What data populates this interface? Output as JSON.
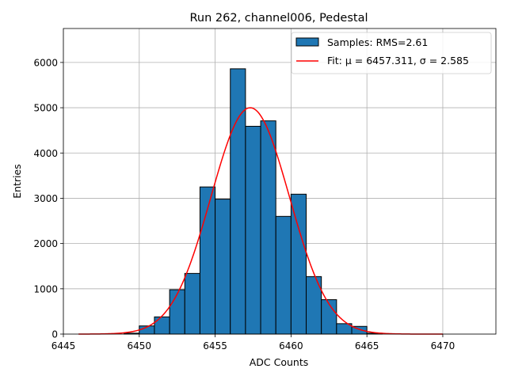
{
  "chart_data": {
    "type": "bar",
    "title": "Run 262, channel006, Pedestal",
    "xlabel": "ADC Counts",
    "ylabel": "Entries",
    "xlim": [
      6445.0,
      6473.5
    ],
    "ylim": [
      0,
      6750
    ],
    "xticks": [
      6445,
      6450,
      6455,
      6460,
      6465,
      6470
    ],
    "yticks": [
      0,
      1000,
      2000,
      3000,
      4000,
      5000,
      6000
    ],
    "grid": true,
    "legend_position": "top-right",
    "colors": {
      "bar_fill": "#1f77b4",
      "bar_edge": "#000000",
      "fit_line": "#ff0000",
      "grid": "#b0b0b0"
    },
    "histogram": {
      "name": "Samples: RMS=2.61",
      "bin_width": 1,
      "bins": [
        {
          "x0": 6446,
          "count": 0
        },
        {
          "x0": 6447,
          "count": 0
        },
        {
          "x0": 6448,
          "count": 0
        },
        {
          "x0": 6449,
          "count": 20
        },
        {
          "x0": 6450,
          "count": 180
        },
        {
          "x0": 6451,
          "count": 380
        },
        {
          "x0": 6452,
          "count": 980
        },
        {
          "x0": 6453,
          "count": 1340
        },
        {
          "x0": 6454,
          "count": 3250
        },
        {
          "x0": 6455,
          "count": 2980
        },
        {
          "x0": 6456,
          "count": 5860
        },
        {
          "x0": 6457,
          "count": 4590
        },
        {
          "x0": 6458,
          "count": 4710
        },
        {
          "x0": 6459,
          "count": 2600
        },
        {
          "x0": 6460,
          "count": 3090
        },
        {
          "x0": 6461,
          "count": 1270
        },
        {
          "x0": 6462,
          "count": 760
        },
        {
          "x0": 6463,
          "count": 230
        },
        {
          "x0": 6464,
          "count": 170
        },
        {
          "x0": 6465,
          "count": 20
        }
      ]
    },
    "fit": {
      "name": "Fit: μ = 6457.311, σ = 2.585",
      "mu": 6457.311,
      "sigma": 2.585,
      "amplitude": 5000,
      "x_range": [
        6446,
        6470
      ]
    }
  }
}
